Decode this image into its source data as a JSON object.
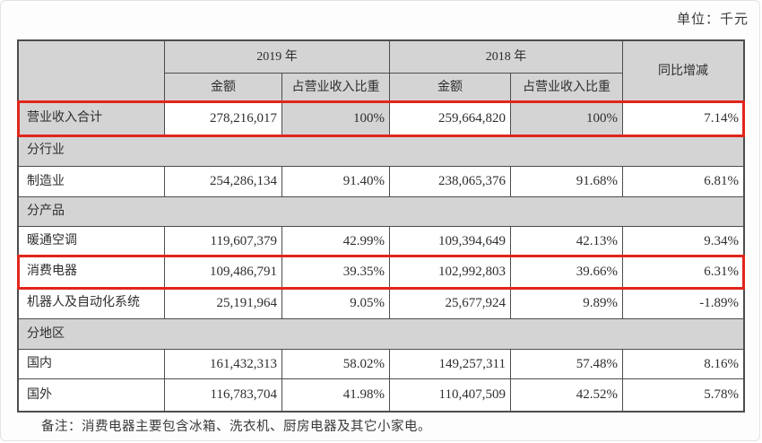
{
  "page": {
    "unit_label": "单位：千元",
    "footnote": "备注：消费电器主要包含冰箱、洗衣机、厨房电器及其它小家电。"
  },
  "table": {
    "headers": {
      "corner": "",
      "year_2019": "2019 年",
      "year_2018": "2018 年",
      "yoy": "同比增减",
      "amount": "金额",
      "share": "占营业收入比重"
    },
    "rows": [
      {
        "type": "data",
        "highlight": true,
        "label": "营业收入合计",
        "a2019": "278,216,017",
        "s2019": "100%",
        "a2018": "259,664,820",
        "s2018": "100%",
        "yoy": "7.14%"
      },
      {
        "type": "section",
        "label": "分行业"
      },
      {
        "type": "data",
        "highlight": false,
        "label": "制造业",
        "a2019": "254,286,134",
        "s2019": "91.40%",
        "a2018": "238,065,376",
        "s2018": "91.68%",
        "yoy": "6.81%"
      },
      {
        "type": "section",
        "label": "分产品"
      },
      {
        "type": "data",
        "highlight": false,
        "label": "暖通空调",
        "a2019": "119,607,379",
        "s2019": "42.99%",
        "a2018": "109,394,649",
        "s2018": "42.13%",
        "yoy": "9.34%"
      },
      {
        "type": "data",
        "highlight": true,
        "label": "消费电器",
        "a2019": "109,486,791",
        "s2019": "39.35%",
        "a2018": "102,992,803",
        "s2018": "39.66%",
        "yoy": "6.31%"
      },
      {
        "type": "data",
        "highlight": false,
        "label": "机器人及自动化系统",
        "a2019": "25,191,964",
        "s2019": "9.05%",
        "a2018": "25,677,924",
        "s2018": "9.89%",
        "yoy": "-1.89%"
      },
      {
        "type": "section",
        "label": "分地区"
      },
      {
        "type": "data",
        "highlight": false,
        "label": "国内",
        "a2019": "161,432,313",
        "s2019": "58.02%",
        "a2018": "149,257,311",
        "s2018": "57.48%",
        "yoy": "8.16%"
      },
      {
        "type": "data",
        "highlight": false,
        "label": "国外",
        "a2019": "116,783,704",
        "s2019": "41.98%",
        "a2018": "110,407,509",
        "s2018": "42.52%",
        "yoy": "5.78%"
      }
    ]
  },
  "colors": {
    "highlight_red": "#e1261d",
    "cell_gray": "#d4d4d4",
    "border_gray": "#4d4d4d",
    "text": "#2e2e2e"
  }
}
